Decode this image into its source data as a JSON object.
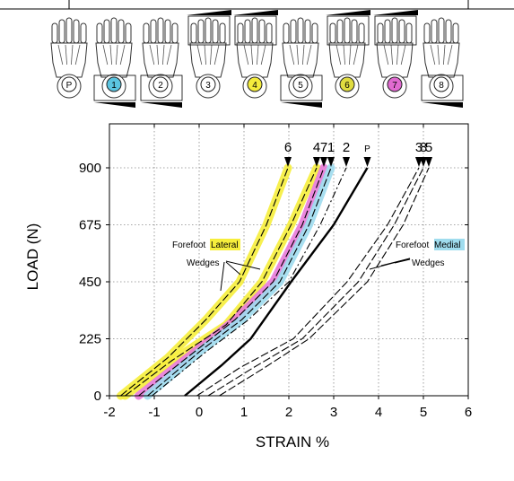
{
  "figure": {
    "foot_labels": [
      "P",
      "1",
      "2",
      "3",
      "4",
      "5",
      "6",
      "7",
      "8"
    ],
    "foot_highlight_colors": [
      "#ffffff",
      "#5bc4e0",
      "#ffffff",
      "#ffffff",
      "#f4ec3c",
      "#ffffff",
      "#e0dc40",
      "#e06ad0",
      "#ffffff"
    ]
  },
  "annotations": {
    "lateral_prefix": "Forefoot ",
    "lateral_highlight": "Lateral",
    "lateral_suffix": "Wedges",
    "medial_prefix": "Forefoot ",
    "medial_highlight": "Medial",
    "medial_suffix": "Wedges",
    "lateral_highlight_color": "#f6ee3c",
    "medial_highlight_color": "#9fdcee"
  },
  "chart_data": {
    "type": "line",
    "title": "",
    "xlabel": "STRAIN %",
    "ylabel": "LOAD (N)",
    "xlim": [
      -2,
      6
    ],
    "ylim": [
      0,
      900
    ],
    "x_ticks": [
      "-2",
      "-1",
      "0",
      "1",
      "2",
      "3",
      "4",
      "5",
      "6"
    ],
    "y_ticks": [
      "0",
      "225",
      "450",
      "675",
      "900"
    ],
    "grid": true,
    "top_markers": [
      {
        "label": "6",
        "x": 1.98
      },
      {
        "label": "4",
        "x": 2.62
      },
      {
        "label": "7",
        "x": 2.78
      },
      {
        "label": "1",
        "x": 2.94
      },
      {
        "label": "2",
        "x": 3.28
      },
      {
        "label": "P",
        "x": 3.75
      },
      {
        "label": "3",
        "x": 4.9
      },
      {
        "label": "8",
        "x": 5.0
      },
      {
        "label": "5",
        "x": 5.12
      }
    ],
    "series": [
      {
        "name": "6",
        "style": "lateral",
        "highlight": "#f6ee3c",
        "points": [
          [
            -1.75,
            0
          ],
          [
            -0.7,
            150
          ],
          [
            0.15,
            300
          ],
          [
            0.9,
            450
          ],
          [
            1.5,
            675
          ],
          [
            1.98,
            900
          ]
        ]
      },
      {
        "name": "4",
        "style": "lateral",
        "highlight": "#f6ee3c",
        "points": [
          [
            -1.65,
            0
          ],
          [
            -0.6,
            140
          ],
          [
            0.6,
            280
          ],
          [
            1.4,
            450
          ],
          [
            2.05,
            675
          ],
          [
            2.62,
            900
          ]
        ]
      },
      {
        "name": "7",
        "style": "lateral",
        "highlight": "#e87ad8",
        "points": [
          [
            -1.35,
            0
          ],
          [
            -0.2,
            160
          ],
          [
            0.8,
            300
          ],
          [
            1.65,
            450
          ],
          [
            2.3,
            675
          ],
          [
            2.78,
            900
          ]
        ]
      },
      {
        "name": "1",
        "style": "lateral",
        "highlight": "#9fdcee",
        "points": [
          [
            -1.15,
            0
          ],
          [
            0.05,
            180
          ],
          [
            0.95,
            300
          ],
          [
            1.8,
            450
          ],
          [
            2.45,
            675
          ],
          [
            2.94,
            900
          ]
        ]
      },
      {
        "name": "2",
        "style": "dashdot",
        "highlight": "",
        "points": [
          [
            -1.05,
            0
          ],
          [
            0.2,
            180
          ],
          [
            1.1,
            300
          ],
          [
            2.0,
            450
          ],
          [
            2.7,
            675
          ],
          [
            3.28,
            900
          ]
        ]
      },
      {
        "name": "P",
        "style": "solid",
        "highlight": "",
        "points": [
          [
            -0.32,
            0
          ],
          [
            0.5,
            120
          ],
          [
            1.15,
            225
          ],
          [
            2.05,
            450
          ],
          [
            3.0,
            675
          ],
          [
            3.75,
            900
          ]
        ]
      },
      {
        "name": "3",
        "style": "medial",
        "highlight": "",
        "points": [
          [
            -0.05,
            0
          ],
          [
            0.9,
            110
          ],
          [
            2.1,
            225
          ],
          [
            3.3,
            450
          ],
          [
            4.2,
            675
          ],
          [
            4.9,
            900
          ]
        ]
      },
      {
        "name": "8",
        "style": "medial",
        "highlight": "",
        "points": [
          [
            0.2,
            0
          ],
          [
            1.2,
            110
          ],
          [
            2.3,
            225
          ],
          [
            3.55,
            450
          ],
          [
            4.35,
            675
          ],
          [
            5.0,
            900
          ]
        ]
      },
      {
        "name": "5",
        "style": "medial",
        "highlight": "",
        "points": [
          [
            0.45,
            0
          ],
          [
            1.45,
            110
          ],
          [
            2.45,
            225
          ],
          [
            3.75,
            450
          ],
          [
            4.55,
            675
          ],
          [
            5.12,
            900
          ]
        ]
      }
    ]
  }
}
